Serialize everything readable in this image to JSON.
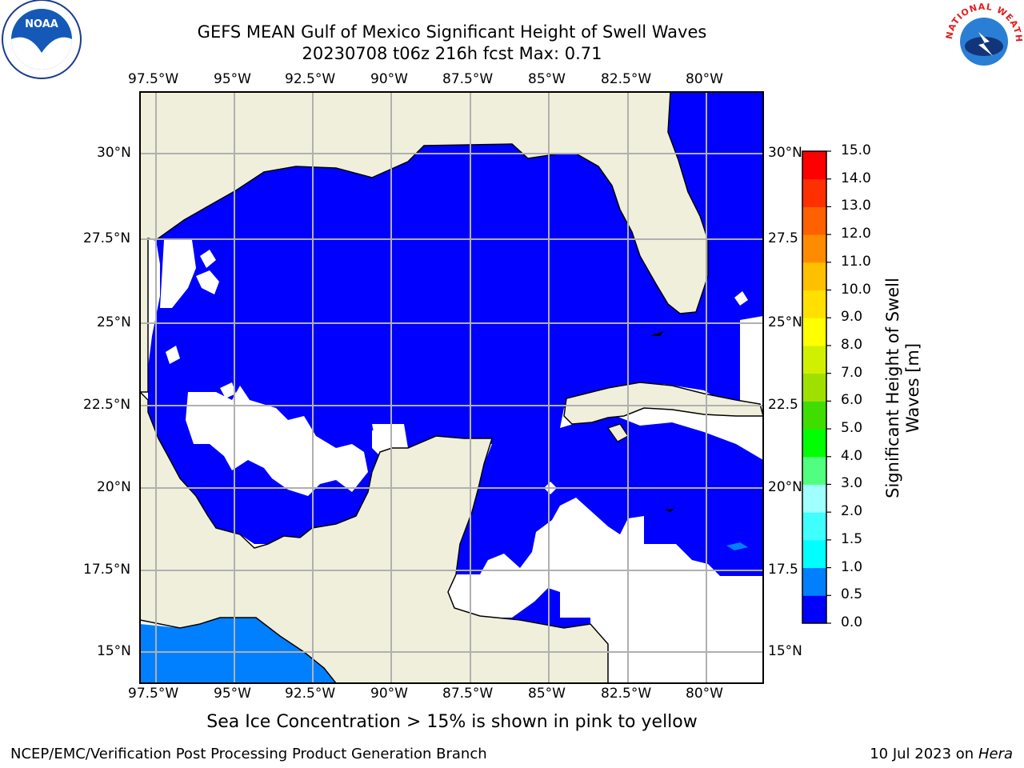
{
  "title_line1": "GEFS MEAN Gulf of Mexico Significant Height of Swell Waves",
  "title_line2": "20230708 t06z 216h fcst   Max: 0.71",
  "lon_labels": [
    "97.5°W",
    "95°W",
    "92.5°W",
    "90°W",
    "87.5°W",
    "85°W",
    "82.5°W",
    "80°W"
  ],
  "lat_labels_left": [
    "30°N",
    "27.5°N",
    "25°N",
    "22.5°N",
    "20°N",
    "17.5°N",
    "15°N"
  ],
  "lat_labels_right": [
    "30°N",
    "27.5",
    "25°N",
    "22.5",
    "20°N",
    "17.5",
    "15°N"
  ],
  "colorbar": {
    "ticks": [
      "0.0",
      "0.5",
      "1.0",
      "1.5",
      "2.0",
      "3.0",
      "4.0",
      "5.0",
      "6.0",
      "7.0",
      "8.0",
      "9.0",
      "10.0",
      "11.0",
      "12.0",
      "13.0",
      "14.0",
      "15.0"
    ],
    "colors": [
      "#0000ff",
      "#0080ff",
      "#00ffff",
      "#40ffff",
      "#a0ffff",
      "#50ff80",
      "#00ff00",
      "#40dd00",
      "#a0e000",
      "#d0f000",
      "#ffff00",
      "#ffe000",
      "#ffc000",
      "#ff8c00",
      "#ff6000",
      "#ff3000",
      "#ff0000"
    ],
    "label_line1": "Significant Height of Swell",
    "label_line2": "Waves [m]"
  },
  "colors": {
    "land": "#efefdc",
    "sea_low": "#0000ff",
    "sea_mid": "#0080ff",
    "grid": "#b0b0b0"
  },
  "note": "Sea Ice Concentration > 15% is shown in pink to yellow",
  "footer_left": "NCEP/EMC/Verification Post Processing Product Generation Branch",
  "footer_right_prefix": "10 Jul 2023 on ",
  "footer_right_host": "Hera",
  "logos": {
    "left_text": "NOAA",
    "right_text": "NATIONAL WEATHER SERVICE"
  }
}
